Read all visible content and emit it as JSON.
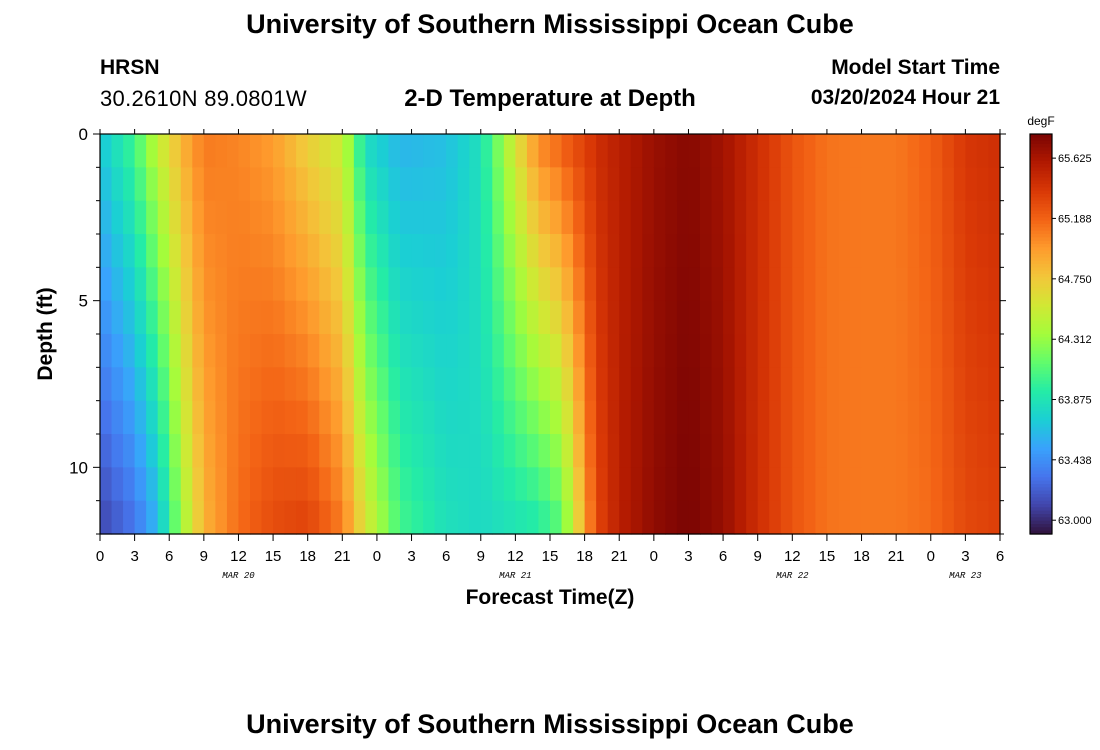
{
  "header": {
    "title": "University of Southern Mississippi Ocean Cube",
    "station": "HRSN",
    "coordinates": "30.2610N  89.0801W",
    "subtitle": "2-D Temperature at Depth",
    "model_start_label": "Model Start Time",
    "model_start_value": "03/20/2024 Hour 21"
  },
  "footer": {
    "title": "University of Southern Mississippi Ocean Cube"
  },
  "chart_data": {
    "type": "heatmap",
    "title": "2-D Temperature at Depth",
    "xlabel": "Forecast Time(Z)",
    "ylabel": "Depth (ft)",
    "x_hours": [
      0,
      78
    ],
    "x_tick_labels": [
      "0",
      "3",
      "6",
      "9",
      "12",
      "15",
      "18",
      "21",
      "0",
      "3",
      "6",
      "9",
      "12",
      "15",
      "18",
      "21",
      "0",
      "3",
      "6",
      "9",
      "12",
      "15",
      "18",
      "21",
      "0",
      "3",
      "6"
    ],
    "date_labels": [
      {
        "label": "MAR 20",
        "hour": 12
      },
      {
        "label": "MAR 21",
        "hour": 36
      },
      {
        "label": "MAR 22",
        "hour": 60
      },
      {
        "label": "MAR 23",
        "hour": 75
      }
    ],
    "y_ticks": [
      0,
      5,
      10
    ],
    "ylim": [
      0,
      12
    ],
    "colorbar": {
      "unit": "degF",
      "ticks": [
        "65.625",
        "65.188",
        "64.750",
        "64.312",
        "63.875",
        "63.438",
        "63.000"
      ],
      "range": [
        62.9,
        65.8
      ],
      "colors": [
        "#30123b",
        "#4145ab",
        "#4675ed",
        "#39a2fc",
        "#1bcfd4",
        "#24eca6",
        "#61fc6c",
        "#a4fc3b",
        "#d1e834",
        "#f3c63a",
        "#fe9b2d",
        "#f36315",
        "#d93806",
        "#b11901",
        "#7a0403"
      ]
    },
    "depths_ft": [
      0,
      1,
      2,
      3,
      4,
      5,
      6,
      7,
      8,
      9,
      10,
      11,
      12
    ],
    "temperature_degF_anchors": [
      {
        "hour": 0,
        "surface": 63.7,
        "bottom": 63.1
      },
      {
        "hour": 3,
        "surface": 64.05,
        "bottom": 63.3
      },
      {
        "hour": 5,
        "surface": 64.5,
        "bottom": 63.6
      },
      {
        "hour": 7,
        "surface": 64.85,
        "bottom": 64.3
      },
      {
        "hour": 9,
        "surface": 65.1,
        "bottom": 64.85
      },
      {
        "hour": 12,
        "surface": 65.05,
        "bottom": 65.15
      },
      {
        "hour": 15,
        "surface": 64.95,
        "bottom": 65.3
      },
      {
        "hour": 18,
        "surface": 64.7,
        "bottom": 65.35
      },
      {
        "hour": 21,
        "surface": 64.5,
        "bottom": 65.1
      },
      {
        "hour": 23,
        "surface": 63.8,
        "bottom": 64.6
      },
      {
        "hour": 26,
        "surface": 63.6,
        "bottom": 64.05
      },
      {
        "hour": 30,
        "surface": 63.65,
        "bottom": 63.85
      },
      {
        "hour": 33,
        "surface": 63.85,
        "bottom": 63.8
      },
      {
        "hour": 36,
        "surface": 64.6,
        "bottom": 63.85
      },
      {
        "hour": 38,
        "surface": 65.05,
        "bottom": 63.9
      },
      {
        "hour": 40,
        "surface": 65.2,
        "bottom": 64.1
      },
      {
        "hour": 41,
        "surface": 65.3,
        "bottom": 64.5
      },
      {
        "hour": 42,
        "surface": 65.35,
        "bottom": 64.9
      },
      {
        "hour": 43,
        "surface": 65.45,
        "bottom": 65.3
      },
      {
        "hour": 45,
        "surface": 65.55,
        "bottom": 65.55
      },
      {
        "hour": 48,
        "surface": 65.68,
        "bottom": 65.72
      },
      {
        "hour": 51,
        "surface": 65.75,
        "bottom": 65.8
      },
      {
        "hour": 54,
        "surface": 65.65,
        "bottom": 65.7
      },
      {
        "hour": 57,
        "surface": 65.45,
        "bottom": 65.45
      },
      {
        "hour": 60,
        "surface": 65.25,
        "bottom": 65.25
      },
      {
        "hour": 63,
        "surface": 65.12,
        "bottom": 65.12
      },
      {
        "hour": 66,
        "surface": 65.1,
        "bottom": 65.1
      },
      {
        "hour": 69,
        "surface": 65.1,
        "bottom": 65.1
      },
      {
        "hour": 72,
        "surface": 65.2,
        "bottom": 65.15
      },
      {
        "hour": 75,
        "surface": 65.4,
        "bottom": 65.3
      },
      {
        "hour": 78,
        "surface": 65.45,
        "bottom": 65.35
      }
    ]
  }
}
